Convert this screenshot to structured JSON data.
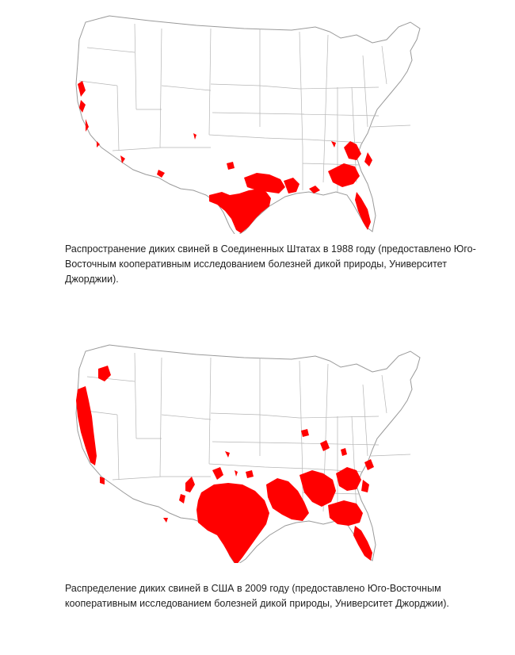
{
  "maps": [
    {
      "caption": "Распространение диких свиней в Соединенных Штатах в 1988 году (предоставлено Юго-Восточным кооперативным исследованием болезней дикой природы, Университет Джорджии).",
      "distribution_color": "#ff0000"
    },
    {
      "caption": "Распределение диких свиней в США в 2009 году (предоставлено Юго-Восточным кооперативным исследованием болезней дикой природы, Университет Джорджии).",
      "distribution_color": "#ff0000"
    }
  ]
}
